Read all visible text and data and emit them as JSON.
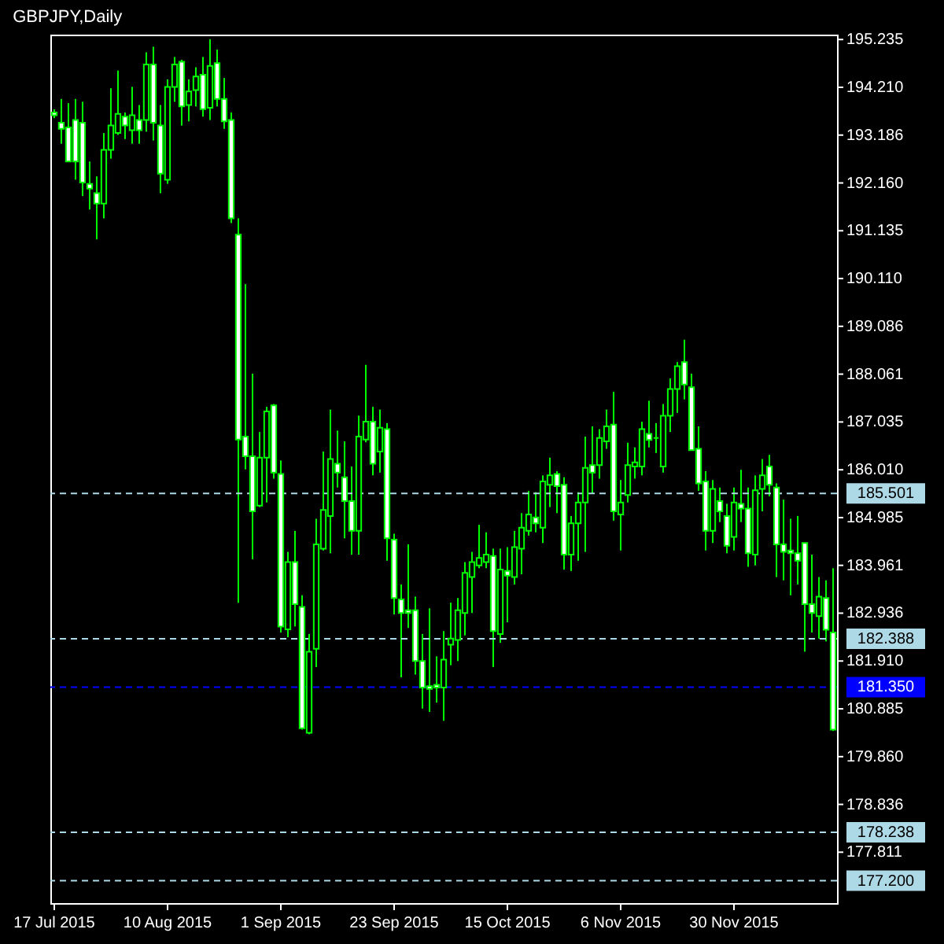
{
  "chart_data": {
    "type": "candlestick",
    "title": "GBPJPY,Daily",
    "categories": [
      "17 Jul 2015",
      null,
      null,
      null,
      null,
      null,
      null,
      null,
      null,
      null,
      null,
      null,
      null,
      null,
      null,
      null,
      "10 Aug 2015",
      null,
      null,
      null,
      null,
      null,
      null,
      null,
      null,
      null,
      null,
      null,
      null,
      null,
      null,
      null,
      "1 Sep 2015",
      null,
      null,
      null,
      null,
      null,
      null,
      null,
      null,
      null,
      null,
      null,
      null,
      null,
      null,
      null,
      "23 Sep 2015",
      null,
      null,
      null,
      null,
      null,
      null,
      null,
      null,
      null,
      null,
      null,
      null,
      null,
      null,
      null,
      "15 Oct 2015",
      null,
      null,
      null,
      null,
      null,
      null,
      null,
      null,
      null,
      null,
      null,
      null,
      null,
      null,
      null,
      "6 Nov 2015",
      null,
      null,
      null,
      null,
      null,
      null,
      null,
      null,
      null,
      null,
      null,
      null,
      null,
      null,
      null,
      "30 Nov 2015",
      null,
      null,
      null,
      null,
      null,
      null,
      null,
      null,
      null,
      null,
      null,
      null,
      null,
      null
    ],
    "ohlc": [
      [
        193.67,
        193.74,
        193.55,
        193.61
      ],
      [
        193.45,
        193.96,
        193.0,
        193.32
      ],
      [
        193.35,
        193.87,
        192.62,
        192.62
      ],
      [
        193.51,
        193.96,
        192.23,
        192.62
      ],
      [
        193.45,
        193.9,
        191.88,
        192.17
      ],
      [
        192.14,
        192.62,
        191.59,
        192.04
      ],
      [
        191.94,
        192.3,
        190.95,
        191.72
      ],
      [
        191.72,
        193.23,
        191.4,
        192.87
      ],
      [
        192.87,
        194.19,
        192.68,
        193.39
      ],
      [
        193.23,
        194.57,
        193.19,
        193.64
      ],
      [
        193.58,
        193.67,
        193.1,
        193.39
      ],
      [
        193.29,
        194.22,
        193.0,
        193.61
      ],
      [
        193.51,
        193.83,
        193.0,
        193.29
      ],
      [
        193.51,
        194.96,
        193.26,
        194.7
      ],
      [
        194.7,
        195.08,
        193.07,
        193.45
      ],
      [
        193.39,
        193.83,
        191.94,
        192.36
      ],
      [
        192.23,
        194.38,
        192.14,
        194.22
      ],
      [
        194.22,
        194.86,
        193.9,
        194.7
      ],
      [
        194.76,
        194.8,
        193.39,
        193.8
      ],
      [
        193.83,
        194.38,
        193.48,
        194.12
      ],
      [
        194.15,
        194.64,
        193.8,
        194.44
      ],
      [
        194.48,
        194.86,
        193.58,
        193.74
      ],
      [
        193.77,
        195.24,
        193.51,
        194.67
      ],
      [
        194.73,
        195.02,
        193.8,
        193.96
      ],
      [
        193.96,
        194.41,
        193.32,
        193.48
      ],
      [
        193.51,
        193.67,
        191.3,
        191.4
      ],
      [
        191.05,
        191.4,
        183.16,
        186.66
      ],
      [
        186.72,
        189.99,
        186.02,
        186.3
      ],
      [
        186.3,
        188.07,
        184.09,
        185.12
      ],
      [
        185.24,
        186.82,
        185.21,
        186.27
      ],
      [
        186.27,
        187.36,
        185.31,
        187.26
      ],
      [
        187.39,
        187.42,
        185.82,
        185.95
      ],
      [
        185.92,
        186.21,
        182.52,
        182.65
      ],
      [
        182.59,
        184.25,
        182.42,
        184.03
      ],
      [
        184.03,
        184.7,
        182.65,
        183.13
      ],
      [
        183.07,
        183.32,
        180.44,
        180.47
      ],
      [
        180.37,
        182.49,
        180.34,
        182.11
      ],
      [
        182.17,
        184.96,
        181.78,
        184.41
      ],
      [
        184.32,
        186.4,
        184.28,
        185.15
      ],
      [
        185.02,
        187.3,
        184.22,
        186.24
      ],
      [
        186.14,
        186.85,
        185.63,
        185.95
      ],
      [
        185.85,
        186.62,
        184.54,
        185.34
      ],
      [
        185.34,
        186.08,
        184.19,
        184.7
      ],
      [
        184.7,
        187.17,
        184.19,
        186.72
      ],
      [
        186.66,
        188.26,
        186.6,
        187.04
      ],
      [
        187.04,
        187.36,
        185.89,
        186.14
      ],
      [
        186.4,
        187.3,
        185.95,
        186.91
      ],
      [
        186.88,
        187.01,
        184.06,
        184.54
      ],
      [
        184.51,
        184.64,
        182.91,
        183.26
      ],
      [
        183.23,
        183.55,
        181.56,
        182.94
      ],
      [
        183.0,
        184.41,
        182.62,
        182.94
      ],
      [
        183.0,
        183.29,
        181.62,
        181.91
      ],
      [
        181.91,
        182.49,
        180.89,
        181.34
      ],
      [
        181.37,
        183.04,
        180.82,
        181.31
      ],
      [
        181.4,
        182.01,
        181.02,
        181.34
      ],
      [
        181.34,
        182.55,
        180.63,
        181.94
      ],
      [
        182.26,
        183.16,
        181.82,
        182.39
      ],
      [
        182.36,
        183.26,
        181.91,
        183.0
      ],
      [
        182.94,
        184.03,
        182.46,
        183.8
      ],
      [
        183.71,
        184.25,
        182.94,
        184.03
      ],
      [
        183.96,
        184.83,
        183.9,
        184.12
      ],
      [
        184.03,
        184.67,
        183.9,
        184.19
      ],
      [
        184.16,
        184.32,
        181.78,
        182.55
      ],
      [
        182.49,
        184.32,
        182.3,
        183.87
      ],
      [
        183.84,
        184.35,
        182.74,
        183.74
      ],
      [
        183.71,
        184.7,
        183.55,
        184.35
      ],
      [
        184.32,
        185.08,
        183.77,
        184.77
      ],
      [
        184.7,
        185.56,
        184.6,
        185.05
      ],
      [
        184.99,
        185.53,
        184.67,
        184.86
      ],
      [
        184.77,
        185.89,
        184.44,
        185.76
      ],
      [
        185.69,
        186.27,
        185.21,
        185.89
      ],
      [
        185.92,
        185.98,
        185.08,
        185.66
      ],
      [
        185.69,
        185.85,
        183.87,
        184.19
      ],
      [
        184.19,
        185.02,
        183.84,
        184.86
      ],
      [
        184.86,
        185.53,
        184.06,
        185.31
      ],
      [
        185.31,
        186.72,
        184.25,
        186.05
      ],
      [
        186.11,
        186.94,
        185.5,
        185.95
      ],
      [
        186.11,
        186.88,
        185.82,
        186.69
      ],
      [
        186.62,
        187.3,
        186.46,
        186.94
      ],
      [
        186.98,
        187.68,
        184.92,
        185.12
      ],
      [
        185.05,
        185.79,
        184.28,
        185.31
      ],
      [
        185.47,
        186.59,
        185.31,
        186.11
      ],
      [
        186.08,
        186.49,
        185.82,
        186.17
      ],
      [
        186.08,
        187.04,
        185.89,
        186.88
      ],
      [
        186.78,
        187.49,
        186.49,
        186.65
      ],
      [
        186.69,
        187.01,
        186.37,
        186.69
      ],
      [
        186.08,
        187.42,
        185.95,
        187.17
      ],
      [
        187.17,
        187.97,
        186.82,
        187.74
      ],
      [
        187.74,
        188.32,
        187.23,
        188.23
      ],
      [
        188.32,
        188.8,
        187.52,
        187.84
      ],
      [
        187.78,
        188.07,
        186.43,
        186.43
      ],
      [
        186.46,
        186.94,
        185.56,
        185.72
      ],
      [
        185.76,
        185.98,
        184.28,
        184.7
      ],
      [
        184.7,
        185.79,
        184.44,
        185.6
      ],
      [
        185.34,
        185.63,
        184.89,
        185.12
      ],
      [
        185.02,
        185.28,
        184.22,
        184.38
      ],
      [
        184.57,
        185.63,
        184.28,
        185.31
      ],
      [
        185.28,
        186.01,
        184.89,
        185.18
      ],
      [
        185.18,
        185.63,
        183.93,
        184.22
      ],
      [
        184.19,
        185.89,
        183.96,
        185.57
      ],
      [
        185.6,
        186.24,
        185.12,
        185.89
      ],
      [
        186.08,
        186.33,
        185.44,
        185.69
      ],
      [
        185.63,
        185.72,
        183.71,
        184.41
      ],
      [
        184.41,
        185.37,
        183.64,
        184.25
      ],
      [
        184.28,
        184.96,
        183.32,
        184.22
      ],
      [
        184.22,
        185.02,
        183.55,
        184.06
      ],
      [
        184.44,
        184.44,
        182.11,
        183.13
      ],
      [
        183.13,
        184.19,
        182.52,
        182.94
      ],
      [
        182.87,
        183.71,
        182.39,
        183.29
      ],
      [
        183.26,
        183.64,
        182.33,
        182.58
      ],
      [
        182.52,
        183.9,
        180.41,
        180.44
      ]
    ],
    "ylim": [
      176.72,
      195.34
    ],
    "yticks": [
      195.235,
      {
        "value": 194.21,
        "label": "194.210"
      },
      193.186,
      {
        "value": 192.16,
        "label": "192.160"
      },
      191.135,
      {
        "value": 190.11,
        "label": "190.110"
      },
      189.086,
      188.061,
      187.035,
      {
        "value": 186.01,
        "label": "186.010"
      },
      184.985,
      183.961,
      182.936,
      {
        "value": 181.91,
        "label": "181.910"
      },
      180.885,
      {
        "value": 179.86,
        "label": "179.860"
      },
      178.836,
      177.811
    ],
    "ref_lines": [
      {
        "axis": "y",
        "value": 185.501,
        "label": "185.501",
        "color": "#add8e6",
        "line_style": "dashed"
      },
      {
        "axis": "y",
        "value": 182.388,
        "label": "182.388",
        "color": "#add8e6",
        "line_style": "dashed"
      },
      {
        "axis": "y",
        "value": 181.35,
        "label": "181.350",
        "color": "#0000ff",
        "line_style": "dashed"
      },
      {
        "axis": "y",
        "value": 178.238,
        "label": "178.238",
        "color": "#add8e6",
        "line_style": "dashed"
      },
      {
        "axis": "y",
        "value": 177.2,
        "label": "177.200",
        "color": "#add8e6",
        "line_style": "dashed"
      }
    ]
  }
}
